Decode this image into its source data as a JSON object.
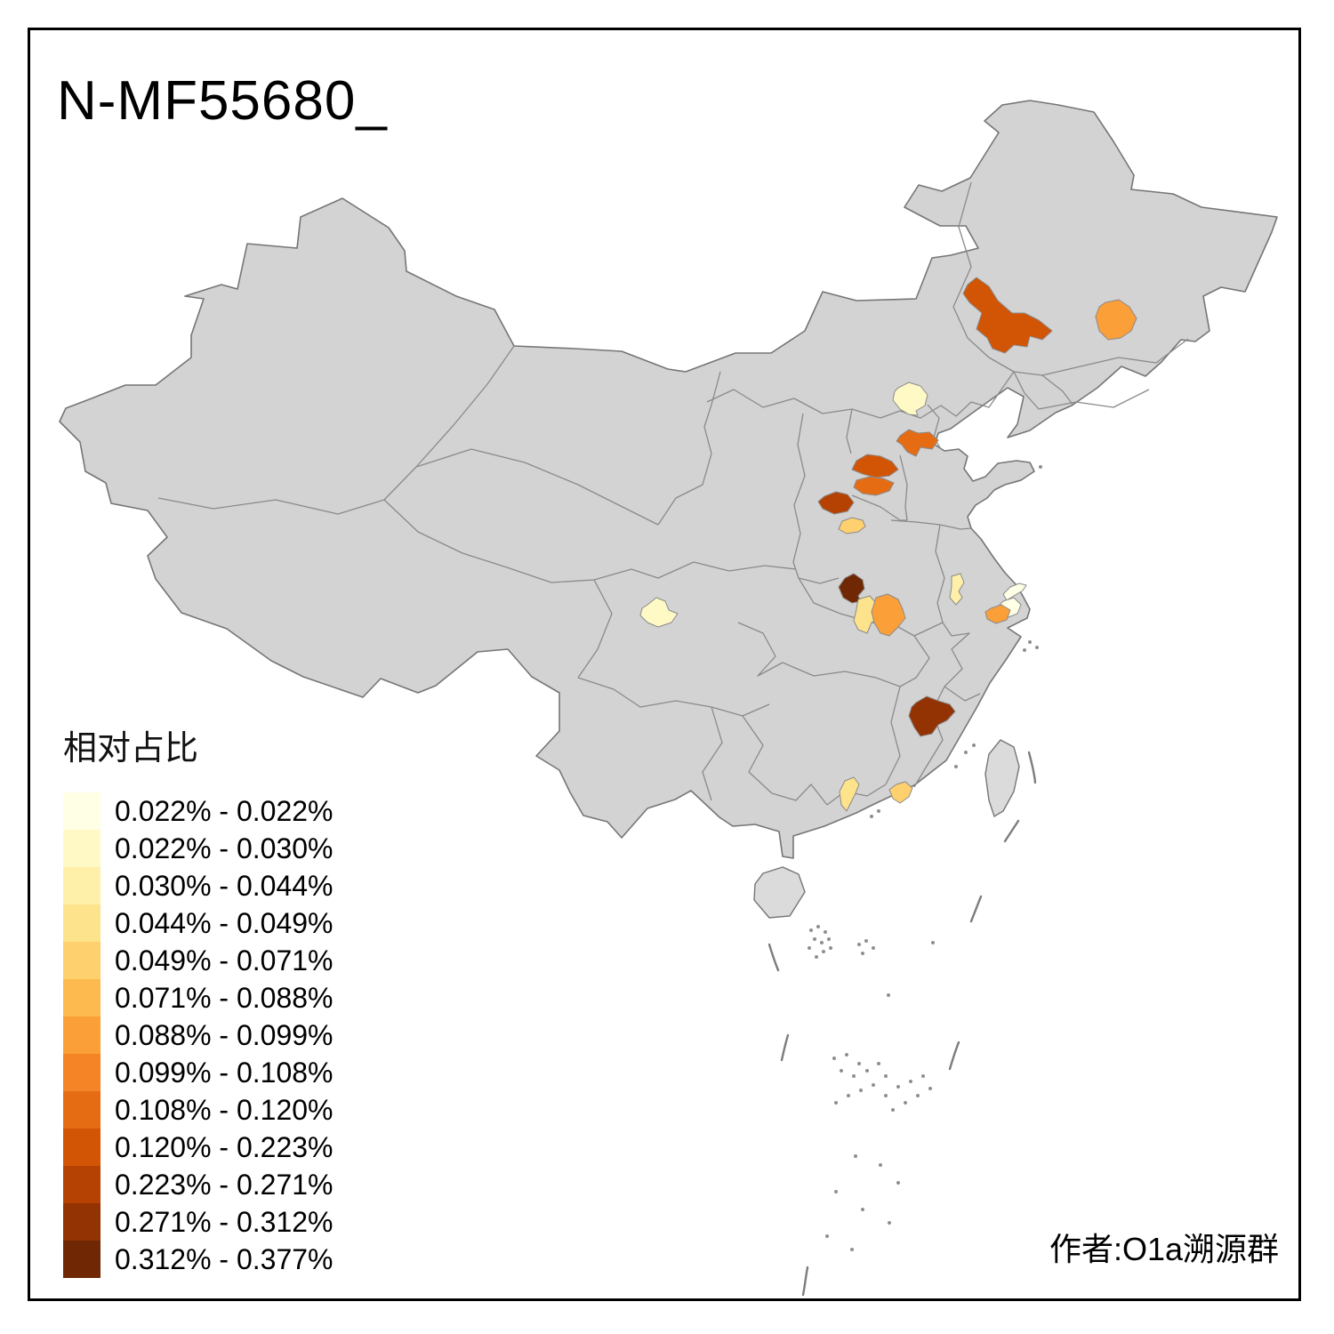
{
  "title": "N-MF55680_",
  "attribution": "作者:O1a溯源群",
  "legend": {
    "title": "相对占比",
    "items": [
      {
        "range": "0.022% - 0.022%",
        "color": "#FFFFE5"
      },
      {
        "range": "0.022% - 0.030%",
        "color": "#FFF9C6"
      },
      {
        "range": "0.030% - 0.044%",
        "color": "#FEF0A9"
      },
      {
        "range": "0.044% - 0.049%",
        "color": "#FEE38D"
      },
      {
        "range": "0.049% - 0.071%",
        "color": "#FED06E"
      },
      {
        "range": "0.071% - 0.088%",
        "color": "#FDBA4E"
      },
      {
        "range": "0.088% - 0.099%",
        "color": "#FB9F39"
      },
      {
        "range": "0.099% - 0.108%",
        "color": "#F58426"
      },
      {
        "range": "0.108% - 0.120%",
        "color": "#E66C14"
      },
      {
        "range": "0.120% - 0.223%",
        "color": "#D25405"
      },
      {
        "range": "0.223% - 0.271%",
        "color": "#B54203"
      },
      {
        "range": "0.271% - 0.312%",
        "color": "#933203"
      },
      {
        "range": "0.312% - 0.377%",
        "color": "#702703"
      }
    ]
  },
  "map": {
    "land_fill": "#D3D3D3",
    "island_fill": "#DBDBDB",
    "national_border": "#757575",
    "province_border": "#8A8A8A",
    "sea": "#FFFFFF",
    "regions": [
      {
        "name": "region-northeast-west",
        "level": 9
      },
      {
        "name": "region-northeast-east",
        "level": 6
      },
      {
        "name": "region-beijing",
        "level": 1
      },
      {
        "name": "region-hebei-northeast",
        "level": 8
      },
      {
        "name": "region-hebei-central",
        "level": 9
      },
      {
        "name": "region-hebei-south",
        "level": 8
      },
      {
        "name": "region-shanxi-southeast",
        "level": 10
      },
      {
        "name": "region-henan-north",
        "level": 4
      },
      {
        "name": "region-henan-west",
        "level": 12
      },
      {
        "name": "region-henan-central",
        "level": 3
      },
      {
        "name": "region-henan-east",
        "level": 6
      },
      {
        "name": "region-anhui-north",
        "level": 2
      },
      {
        "name": "region-jiangsu-coast-north",
        "level": 0
      },
      {
        "name": "region-jiangsu-coast-south",
        "level": 0
      },
      {
        "name": "region-jiangsu-suzhou",
        "level": 6
      },
      {
        "name": "region-sichuan-chengdu",
        "level": 1
      },
      {
        "name": "region-fujian-central",
        "level": 11
      },
      {
        "name": "region-guangdong-west",
        "level": 3
      },
      {
        "name": "region-guangdong-east",
        "level": 4
      }
    ]
  }
}
